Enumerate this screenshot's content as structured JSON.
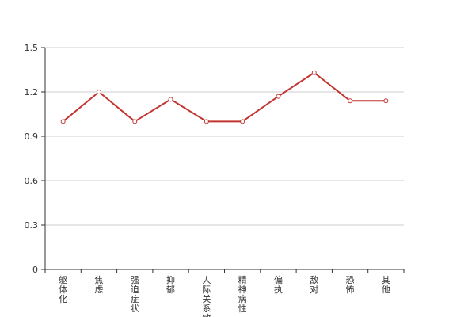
{
  "chart_data": {
    "type": "line",
    "title": "",
    "xlabel": "",
    "ylabel": "",
    "categories": [
      "躯体化",
      "焦虑",
      "强迫症状",
      "抑郁",
      "人际关系敏感",
      "精神病性",
      "偏执",
      "敌对",
      "恐怖",
      "其他"
    ],
    "series": [
      {
        "values": [
          1.0,
          1.2,
          1.0,
          1.15,
          1.0,
          1.0,
          1.17,
          1.33,
          1.14,
          1.14
        ]
      }
    ],
    "ylim": [
      0,
      1.5
    ],
    "yticks": [
      "0",
      "0.3",
      "0.6",
      "0.9",
      "1.2",
      "1.5"
    ],
    "grid": true,
    "line_color": "#c23531",
    "point_fill": "#ffffff"
  }
}
